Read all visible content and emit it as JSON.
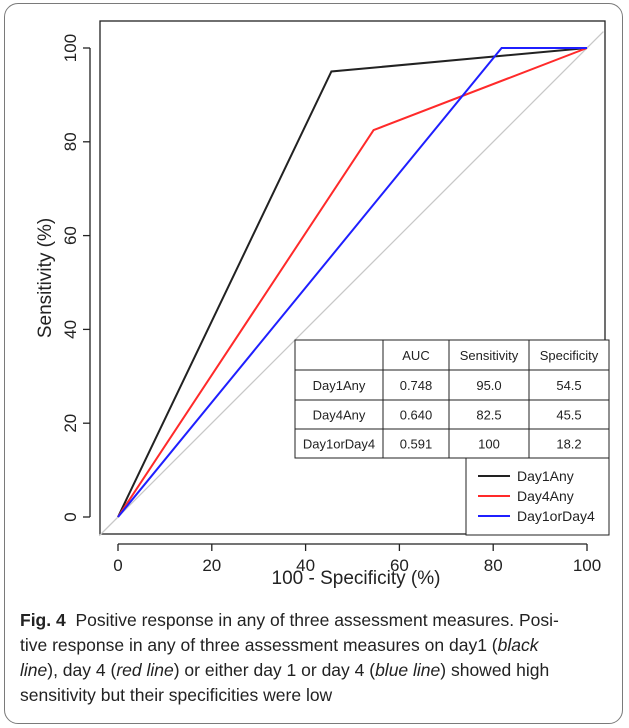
{
  "colors": {
    "black": "#222222",
    "red": "#ff2a2a",
    "blue": "#1f1fff",
    "diagonal": "#c8c8c8"
  },
  "chart_data": {
    "type": "line",
    "title": "",
    "xlabel": "100 - Specificity (%)",
    "ylabel": "Sensitivity (%)",
    "xlim": [
      0,
      100
    ],
    "ylim": [
      0,
      100
    ],
    "xticks": [
      "0",
      "20",
      "40",
      "60",
      "80",
      "100"
    ],
    "yticks": [
      "0",
      "20",
      "40",
      "60",
      "80",
      "100"
    ],
    "grid": false,
    "reference_line": {
      "x": [
        0,
        100
      ],
      "y": [
        0,
        100
      ],
      "color": "#c8c8c8"
    },
    "series": [
      {
        "name": "Day1Any",
        "color": "#222222",
        "x": [
          0,
          45.5,
          100
        ],
        "y": [
          0,
          95.0,
          100
        ]
      },
      {
        "name": "Day4Any",
        "color": "#ff2a2a",
        "x": [
          0,
          54.5,
          100
        ],
        "y": [
          0,
          82.5,
          100
        ]
      },
      {
        "name": "Day1orDay4",
        "color": "#1f1fff",
        "x": [
          0,
          81.8,
          100
        ],
        "y": [
          0,
          100,
          100
        ]
      }
    ],
    "legend_position": "bottom-right",
    "table": {
      "headers": [
        "",
        "AUC",
        "Sensitivity",
        "Specificity"
      ],
      "rows": [
        [
          "Day1Any",
          "0.748",
          "95.0",
          "54.5"
        ],
        [
          "Day4Any",
          "0.640",
          "82.5",
          "45.5"
        ],
        [
          "Day1orDay4",
          "0.591",
          "100",
          "18.2"
        ]
      ]
    }
  },
  "caption": {
    "label": "Fig. 4",
    "line1": "Positive response in any of three assessment measures. Posi-",
    "line2_pre": "tive response in any of three assessment measures on day1 (",
    "line2_em": "black",
    "line3_em1": "line",
    "line3_mid": "), day 4 (",
    "line3_em2": "red line",
    "line3_mid2": ") or either day 1 or day 4 (",
    "line3_em3": "blue line",
    "line3_post": ") showed high",
    "line4": "sensitivity but their specificities were low"
  }
}
